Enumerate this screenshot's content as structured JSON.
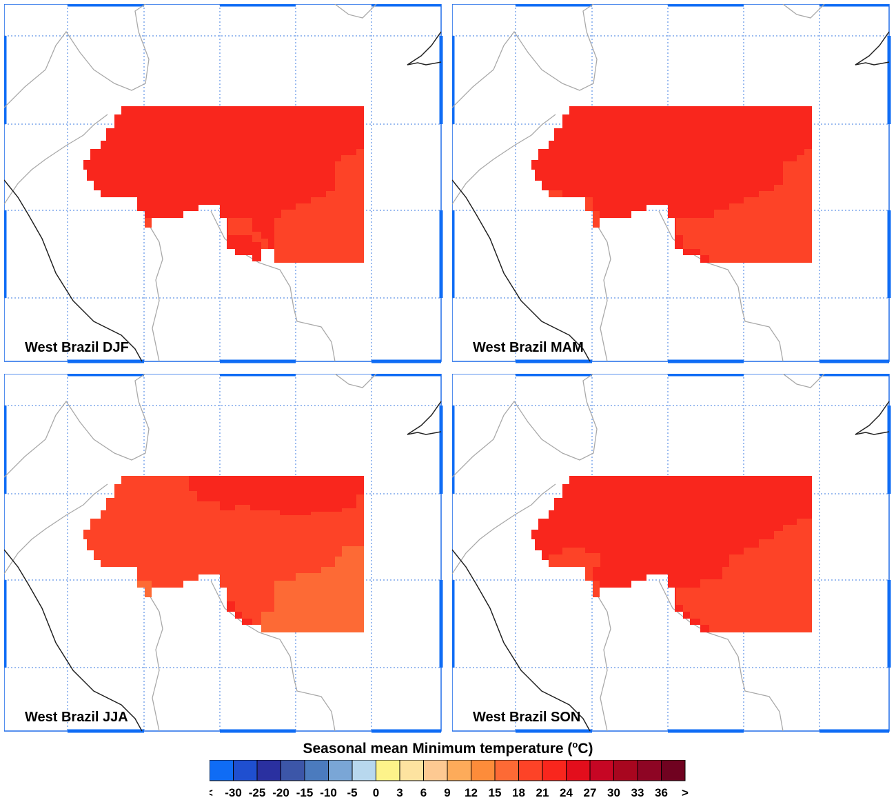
{
  "panels": [
    {
      "label": "West Brazil DJF",
      "season": "DJF"
    },
    {
      "label": "West Brazil MAM",
      "season": "MAM"
    },
    {
      "label": "West Brazil JJA",
      "season": "JJA"
    },
    {
      "label": "West Brazil SON",
      "season": "SON"
    }
  ],
  "colorbar": {
    "title_main": "Seasonal mean Minimum temperature (",
    "title_sup": "o",
    "title_unit": "C)",
    "tick_labels": [
      "<",
      "-30",
      "-25",
      "-20",
      "-15",
      "-10",
      "-5",
      "0",
      "3",
      "6",
      "9",
      "12",
      "15",
      "18",
      "21",
      "24",
      "27",
      "30",
      "33",
      "36",
      ">"
    ],
    "colors": [
      "#0f6cf5",
      "#1f4fd0",
      "#2a30a0",
      "#3c56a8",
      "#4b7bbe",
      "#7aa6d6",
      "#b8d8ee",
      "#fdf38a",
      "#fde3a0",
      "#fdc992",
      "#fdab5a",
      "#fd8c3a",
      "#fd6a35",
      "#fd4327",
      "#f9261d",
      "#e30e1c",
      "#c60624",
      "#a8061f",
      "#8e0524",
      "#700220"
    ]
  },
  "palette": {
    "c18": "#fd6a35",
    "c21": "#fd4327",
    "c24": "#f9261d",
    "c27": "#e30e1c"
  }
}
